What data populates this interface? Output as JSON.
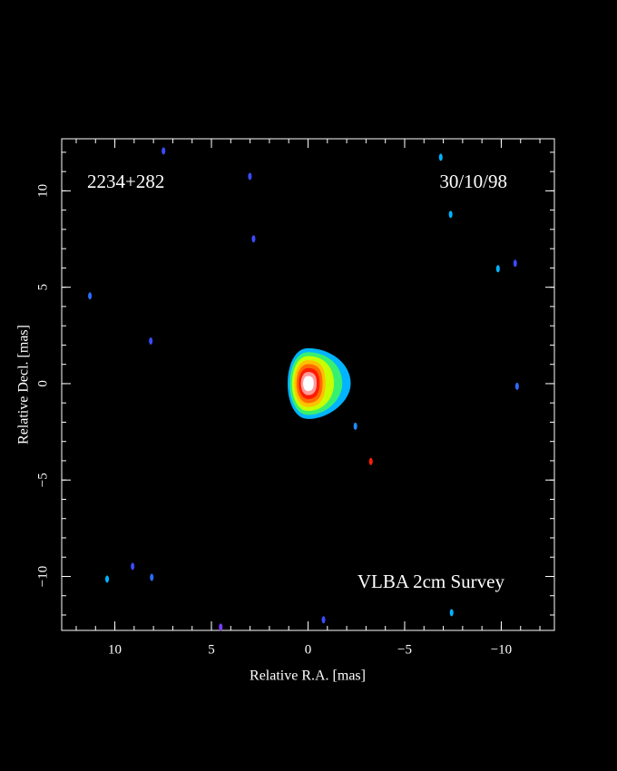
{
  "chart_data": {
    "type": "image",
    "source": "2234+282",
    "date": "30/10/98",
    "survey": "VLBA 2cm Survey",
    "xlabel": "Relative R.A. [mas]",
    "ylabel": "Relative Decl. [mas]",
    "xlim": [
      12.75,
      -12.75
    ],
    "ylim": [
      12.7,
      -12.8
    ],
    "xticks": [
      10,
      5,
      0,
      {
        "value": -5,
        "label": "−5"
      },
      {
        "value": -10,
        "label": "−10"
      }
    ],
    "yticks": [
      {
        "value": -10,
        "label": "−10"
      },
      {
        "value": -5,
        "label": "−5"
      },
      0,
      5,
      10
    ],
    "minor_tick_step": 1,
    "core": {
      "x": 0,
      "y": 0,
      "levels": [
        "#00b4ff",
        "#38f070",
        "#c8ff00",
        "#ffc000",
        "#ff6a00",
        "#ff1a00",
        "#ff9a9a",
        "#ffffff"
      ]
    },
    "spots": {
      "x": [
        -6.87,
        -7.38,
        -9.83,
        -10.82,
        -2.45,
        11.29,
        8.14,
        10.4,
        9.08,
        8.09,
        4.52,
        -0.8,
        -7.43,
        3.01,
        2.82,
        7.48,
        -10.72,
        -3.25
      ],
      "y": [
        11.74,
        8.78,
        5.96,
        -0.14,
        -2.21,
        4.55,
        2.21,
        -10.14,
        -9.48,
        -10.05,
        -12.63,
        -12.25,
        -11.88,
        10.75,
        7.51,
        12.07,
        6.24,
        -4.04
      ],
      "colors": [
        "#00b4ff",
        "#00b4ff",
        "#00b4ff",
        "#2a6cff",
        "#1e8cff",
        "#2a6cff",
        "#3a4cff",
        "#00b4ff",
        "#3a4cff",
        "#2a6cff",
        "#7a3cff",
        "#3a4cff",
        "#00b4ff",
        "#3a4cff",
        "#3a4cff",
        "#3a4cff",
        "#3a4cff",
        "#ff2000"
      ]
    }
  }
}
